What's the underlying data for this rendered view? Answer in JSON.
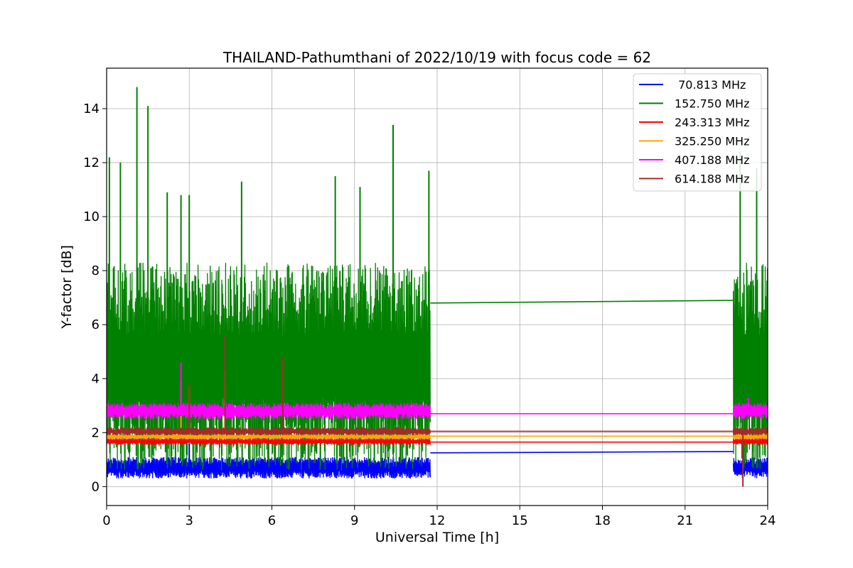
{
  "chart_data": {
    "type": "line",
    "title": "THAILAND-Pathumthani of 2022/10/19 with focus code = 62",
    "xlabel": "Universal Time [h]",
    "ylabel": "Y-factor [dB]",
    "xlim": [
      0,
      24
    ],
    "ylim": [
      -0.7,
      15.5
    ],
    "x_ticks": [
      "0",
      "3",
      "6",
      "9",
      "12",
      "15",
      "18",
      "21",
      "24"
    ],
    "y_ticks": [
      "0",
      "2",
      "4",
      "6",
      "8",
      "10",
      "12",
      "14"
    ],
    "grid": true,
    "legend_position": "top-right",
    "data_gap_hours": [
      11.75,
      22.75
    ],
    "series": [
      {
        "name": " 70.813 MHz",
        "color": "#0000ff",
        "band_min": 0.3,
        "band_max": 1.1,
        "gap_line": [
          1.25,
          1.3
        ],
        "spikes": [
          [
            3.0,
            1.6
          ],
          [
            23.1,
            1.5
          ]
        ]
      },
      {
        "name": "152.750 MHz",
        "color": "#008000",
        "band_min": 0.6,
        "band_max": 8.3,
        "gap_line": [
          6.8,
          6.9
        ],
        "spikes": [
          [
            0.1,
            12.2
          ],
          [
            0.5,
            12.0
          ],
          [
            1.1,
            14.8
          ],
          [
            1.5,
            14.1
          ],
          [
            2.2,
            10.9
          ],
          [
            2.7,
            10.8
          ],
          [
            3.0,
            10.8
          ],
          [
            4.9,
            11.3
          ],
          [
            8.3,
            11.5
          ],
          [
            9.2,
            11.1
          ],
          [
            10.4,
            13.4
          ],
          [
            11.7,
            11.7
          ],
          [
            23.0,
            12.4
          ],
          [
            23.6,
            11.8
          ]
        ]
      },
      {
        "name": "243.313 MHz",
        "color": "#ff0000",
        "band_min": 1.55,
        "band_max": 1.8,
        "gap_line": [
          1.65,
          1.65
        ],
        "spikes": []
      },
      {
        "name": "325.250 MHz",
        "color": "#ffa500",
        "band_min": 1.75,
        "band_max": 1.95,
        "gap_line": [
          1.87,
          1.87
        ],
        "spikes": [
          [
            2.7,
            3.9
          ],
          [
            3.0,
            3.7
          ],
          [
            4.3,
            4.3
          ],
          [
            6.4,
            3.7
          ]
        ]
      },
      {
        "name": "407.188 MHz",
        "color": "#ff00ff",
        "band_min": 2.5,
        "band_max": 3.1,
        "gap_line": [
          2.7,
          2.7
        ],
        "spikes": [
          [
            2.7,
            4.6
          ],
          [
            6.4,
            3.6
          ],
          [
            23.3,
            3.3
          ]
        ]
      },
      {
        "name": "614.188 MHz",
        "color": "#a52a2a",
        "band_min": 1.9,
        "band_max": 2.2,
        "gap_line": [
          2.05,
          2.05
        ],
        "spikes": [
          [
            3.0,
            3.8
          ],
          [
            4.3,
            5.6
          ],
          [
            6.4,
            4.8
          ],
          [
            23.1,
            0.0
          ]
        ]
      }
    ]
  }
}
